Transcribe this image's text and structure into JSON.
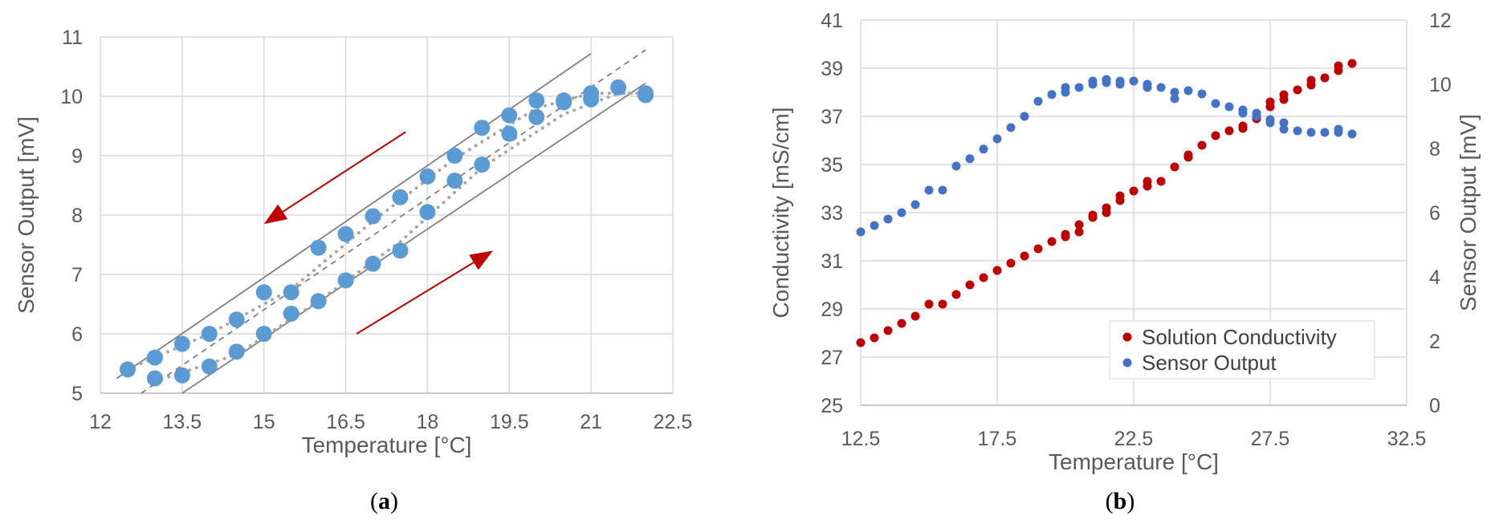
{
  "chart_data": [
    {
      "type": "scatter",
      "panel_label": "a",
      "xlabel": "Temperature [°C]",
      "ylabel": "Sensor Output [mV]",
      "xlim": [
        12,
        22.5
      ],
      "ylim": [
        5,
        11
      ],
      "xticks": [
        "12",
        "13.5",
        "15",
        "16.5",
        "18",
        "19.5",
        "21",
        "22.5"
      ],
      "yticks": [
        "5",
        "6",
        "7",
        "8",
        "9",
        "10",
        "11"
      ],
      "grid": true,
      "marker_color": "#5b9bd5",
      "series": [
        {
          "points": [
            [
              12.5,
              5.4
            ],
            [
              13,
              5.6
            ],
            [
              13.5,
              5.83
            ],
            [
              14,
              6.0
            ],
            [
              14.5,
              6.24
            ],
            [
              15,
              6.7
            ],
            [
              15.5,
              6.7
            ],
            [
              16,
              7.45
            ],
            [
              16.5,
              7.68
            ],
            [
              17,
              7.98
            ],
            [
              17.5,
              8.3
            ],
            [
              18,
              8.65
            ],
            [
              18.5,
              9.0
            ],
            [
              19,
              9.47
            ],
            [
              19.5,
              9.68
            ],
            [
              20,
              9.93
            ],
            [
              20.5,
              9.93
            ],
            [
              21,
              10.05
            ],
            [
              21.5,
              10.15
            ],
            [
              22,
              10.05
            ],
            [
              13,
              5.25
            ],
            [
              13.5,
              5.3
            ],
            [
              14,
              5.45
            ],
            [
              14.5,
              5.7
            ],
            [
              15,
              6.0
            ],
            [
              15.5,
              6.34
            ],
            [
              16,
              6.55
            ],
            [
              16.5,
              6.9
            ],
            [
              17,
              7.18
            ],
            [
              17.5,
              7.4
            ],
            [
              18,
              8.05
            ],
            [
              18.5,
              8.58
            ],
            [
              19,
              8.85
            ],
            [
              19.5,
              9.37
            ],
            [
              20,
              9.65
            ],
            [
              20.5,
              9.9
            ],
            [
              21,
              9.95
            ],
            [
              22,
              10.02
            ]
          ]
        }
      ],
      "lines": [
        {
          "style": "solid",
          "color": "#7f7f7f",
          "from": [
            12.3,
            5.25
          ],
          "to": [
            21,
            10.72
          ]
        },
        {
          "style": "solid",
          "color": "#7f7f7f",
          "from": [
            13.5,
            5.0
          ],
          "to": [
            22,
            10.22
          ]
        },
        {
          "style": "dashed",
          "color": "#7f7f7f",
          "from": [
            12.75,
            5.0
          ],
          "to": [
            22,
            10.78
          ]
        }
      ],
      "trendlines": [
        {
          "style": "dotted",
          "color": "#a6a6a6",
          "points": [
            [
              12.5,
              5.4
            ],
            [
              14,
              6.0
            ],
            [
              15.5,
              6.75
            ],
            [
              17,
              7.9
            ],
            [
              18.5,
              8.95
            ],
            [
              20,
              9.8
            ],
            [
              21,
              10.05
            ],
            [
              22,
              10.05
            ]
          ]
        },
        {
          "style": "dotted",
          "color": "#a6a6a6",
          "points": [
            [
              13,
              5.2
            ],
            [
              14.5,
              5.65
            ],
            [
              16,
              6.55
            ],
            [
              17.5,
              7.55
            ],
            [
              19,
              8.8
            ],
            [
              20.5,
              9.7
            ],
            [
              21.5,
              10.05
            ],
            [
              22,
              10.05
            ]
          ]
        }
      ],
      "arrows": [
        {
          "color": "#c00000",
          "from": [
            17.6,
            9.4
          ],
          "to": [
            15.0,
            7.85
          ]
        },
        {
          "color": "#c00000",
          "from": [
            16.7,
            6.0
          ],
          "to": [
            19.2,
            7.4
          ]
        }
      ]
    },
    {
      "type": "scatter",
      "panel_label": "b",
      "xlabel": "Temperature [°C]",
      "ylabel": "Conductivity [mS/cm]",
      "y2label": "Sensor Output [mV]",
      "xlim": [
        12.5,
        32.5
      ],
      "ylim": [
        25,
        41
      ],
      "y2lim": [
        0,
        12
      ],
      "xticks": [
        "12.5",
        "17.5",
        "22.5",
        "27.5",
        "32.5"
      ],
      "yticks": [
        "25",
        "27",
        "29",
        "31",
        "33",
        "35",
        "37",
        "39",
        "41"
      ],
      "y2ticks": [
        "0",
        "2",
        "4",
        "6",
        "8",
        "10",
        "12"
      ],
      "grid": true,
      "legend_position": "lower-right",
      "series": [
        {
          "name": "Solution Conductivity",
          "axis": "left",
          "color": "#c00000",
          "points": [
            [
              12.5,
              27.6
            ],
            [
              13,
              27.8
            ],
            [
              13.5,
              28.1
            ],
            [
              14,
              28.4
            ],
            [
              14.5,
              28.7
            ],
            [
              15,
              29.2
            ],
            [
              15.5,
              29.2
            ],
            [
              16,
              29.6
            ],
            [
              16.5,
              30.0
            ],
            [
              17,
              30.3
            ],
            [
              17.5,
              30.6
            ],
            [
              18,
              30.9
            ],
            [
              18.5,
              31.2
            ],
            [
              19,
              31.5
            ],
            [
              19.5,
              31.8
            ],
            [
              20,
              32.1
            ],
            [
              20,
              32.0
            ],
            [
              20.5,
              32.2
            ],
            [
              20.5,
              32.5
            ],
            [
              21,
              32.8
            ],
            [
              21,
              32.9
            ],
            [
              21.5,
              33.0
            ],
            [
              21.5,
              33.2
            ],
            [
              22,
              33.5
            ],
            [
              22,
              33.7
            ],
            [
              22.5,
              33.9
            ],
            [
              23,
              34.1
            ],
            [
              23,
              34.3
            ],
            [
              23.5,
              34.3
            ],
            [
              24,
              34.9
            ],
            [
              24.5,
              35.3
            ],
            [
              24.5,
              35.4
            ],
            [
              25,
              35.8
            ],
            [
              25.5,
              36.2
            ],
            [
              26,
              36.4
            ],
            [
              26.5,
              36.5
            ],
            [
              26.5,
              36.6
            ],
            [
              27,
              36.9
            ],
            [
              27.5,
              37.4
            ],
            [
              27.5,
              37.6
            ],
            [
              28,
              37.7
            ],
            [
              28,
              37.9
            ],
            [
              28.5,
              38.1
            ],
            [
              29,
              38.3
            ],
            [
              29,
              38.5
            ],
            [
              29.5,
              38.6
            ],
            [
              30,
              38.9
            ],
            [
              30,
              39.1
            ],
            [
              30.5,
              39.2
            ]
          ]
        },
        {
          "name": "Sensor Output",
          "axis": "right",
          "color": "#4472c4",
          "points": [
            [
              12.5,
              5.4
            ],
            [
              13,
              5.6
            ],
            [
              13.5,
              5.8
            ],
            [
              14,
              6.0
            ],
            [
              14.5,
              6.25
            ],
            [
              15,
              6.7
            ],
            [
              15.5,
              6.7
            ],
            [
              16,
              7.45
            ],
            [
              16.5,
              7.68
            ],
            [
              17,
              7.98
            ],
            [
              17.5,
              8.3
            ],
            [
              18,
              8.65
            ],
            [
              18.5,
              9.0
            ],
            [
              19,
              9.47
            ],
            [
              19.5,
              9.68
            ],
            [
              20,
              9.75
            ],
            [
              20,
              9.9
            ],
            [
              20.5,
              9.9
            ],
            [
              21,
              10.0
            ],
            [
              21,
              10.1
            ],
            [
              21.5,
              10.05
            ],
            [
              21.5,
              10.15
            ],
            [
              22,
              10.0
            ],
            [
              22,
              10.1
            ],
            [
              22.5,
              10.1
            ],
            [
              23,
              9.9
            ],
            [
              23,
              10.0
            ],
            [
              23.5,
              9.9
            ],
            [
              24,
              9.55
            ],
            [
              24,
              9.75
            ],
            [
              24.5,
              9.8
            ],
            [
              25,
              9.7
            ],
            [
              25.5,
              9.4
            ],
            [
              26,
              9.3
            ],
            [
              26.5,
              9.1
            ],
            [
              26.5,
              9.2
            ],
            [
              27,
              9.0
            ],
            [
              27,
              9.1
            ],
            [
              27.5,
              8.8
            ],
            [
              27.5,
              8.9
            ],
            [
              28,
              8.6
            ],
            [
              28,
              8.8
            ],
            [
              28.5,
              8.55
            ],
            [
              29,
              8.5
            ],
            [
              29.5,
              8.5
            ],
            [
              30,
              8.5
            ],
            [
              30,
              8.6
            ],
            [
              30.5,
              8.45
            ]
          ]
        }
      ]
    }
  ]
}
